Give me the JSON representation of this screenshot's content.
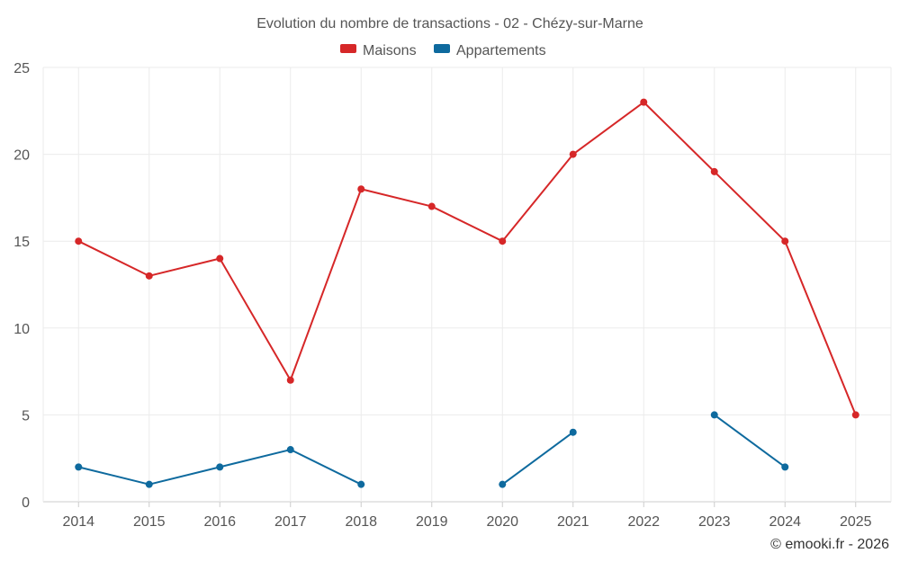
{
  "chart_data": {
    "type": "line",
    "title": "Evolution du nombre de transactions - 02 - Chézy-sur-Marne",
    "categories": [
      "2014",
      "2015",
      "2016",
      "2017",
      "2018",
      "2019",
      "2020",
      "2021",
      "2022",
      "2023",
      "2024",
      "2025"
    ],
    "series": [
      {
        "name": "Maisons",
        "color": "#d62728",
        "values": [
          15,
          13,
          14,
          7,
          18,
          17,
          15,
          20,
          23,
          19,
          15,
          5
        ]
      },
      {
        "name": "Appartements",
        "color": "#0e6a9e",
        "values": [
          2,
          1,
          2,
          3,
          1,
          null,
          1,
          4,
          null,
          5,
          2,
          null
        ]
      }
    ],
    "ylim": [
      0,
      25
    ],
    "yticks": [
      0,
      5,
      10,
      15,
      20,
      25
    ],
    "grid": true,
    "legend": "top-center",
    "xlabel": "",
    "ylabel": ""
  },
  "credit": "© emooki.fr - 2026"
}
